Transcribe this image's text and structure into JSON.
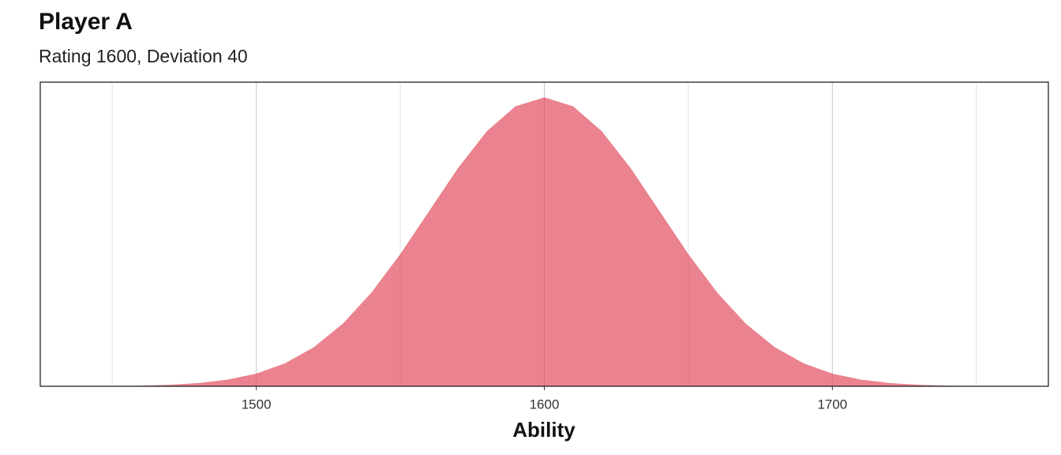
{
  "chart_data": {
    "type": "area",
    "title": "Player A",
    "subtitle": "Rating 1600, Deviation 40",
    "x_label": "Ability",
    "x": [
      1440,
      1450,
      1460,
      1470,
      1480,
      1490,
      1500,
      1510,
      1520,
      1530,
      1540,
      1550,
      1560,
      1570,
      1580,
      1590,
      1600,
      1610,
      1620,
      1630,
      1640,
      1650,
      1660,
      1670,
      1680,
      1690,
      1700,
      1710,
      1720,
      1730,
      1740,
      1750,
      1760
    ],
    "values": [
      3.3e-06,
      8.8e-06,
      2.18e-05,
      5.07e-05,
      0.000111,
      0.000227,
      0.000438,
      0.000794,
      0.00135,
      0.002157,
      0.003238,
      0.004566,
      0.006049,
      0.007529,
      0.008802,
      0.009667,
      0.009974,
      0.009667,
      0.008802,
      0.007529,
      0.006049,
      0.004566,
      0.003238,
      0.002157,
      0.00135,
      0.000794,
      0.000438,
      0.000227,
      0.000111,
      5.07e-05,
      2.18e-05,
      8.8e-06,
      3.3e-06
    ],
    "color": "#e0485a",
    "xlim": [
      1425,
      1775
    ],
    "ylim": [
      0,
      0.0105
    ],
    "xticks": [
      1500,
      1600,
      1700
    ],
    "x_minor_grid": [
      1450,
      1550,
      1650,
      1750
    ],
    "grid": true
  }
}
